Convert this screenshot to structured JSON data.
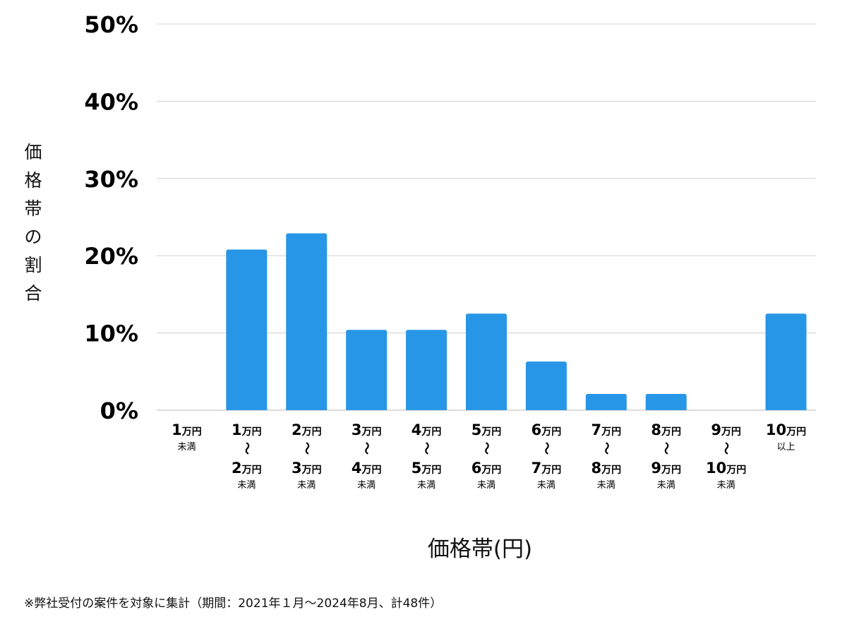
{
  "chart_data": {
    "type": "bar",
    "categories": [
      {
        "lines": [
          [
            "1",
            "万円"
          ],
          [
            "未満"
          ]
        ]
      },
      {
        "lines": [
          [
            "1",
            "万円"
          ],
          [
            "〜"
          ],
          [
            "2",
            "万円"
          ],
          [
            "未満"
          ]
        ]
      },
      {
        "lines": [
          [
            "2",
            "万円"
          ],
          [
            "〜"
          ],
          [
            "3",
            "万円"
          ],
          [
            "未満"
          ]
        ]
      },
      {
        "lines": [
          [
            "3",
            "万円"
          ],
          [
            "〜"
          ],
          [
            "4",
            "万円"
          ],
          [
            "未満"
          ]
        ]
      },
      {
        "lines": [
          [
            "4",
            "万円"
          ],
          [
            "〜"
          ],
          [
            "5",
            "万円"
          ],
          [
            "未満"
          ]
        ]
      },
      {
        "lines": [
          [
            "5",
            "万円"
          ],
          [
            "〜"
          ],
          [
            "6",
            "万円"
          ],
          [
            "未満"
          ]
        ]
      },
      {
        "lines": [
          [
            "6",
            "万円"
          ],
          [
            "〜"
          ],
          [
            "7",
            "万円"
          ],
          [
            "未満"
          ]
        ]
      },
      {
        "lines": [
          [
            "7",
            "万円"
          ],
          [
            "〜"
          ],
          [
            "8",
            "万円"
          ],
          [
            "未満"
          ]
        ]
      },
      {
        "lines": [
          [
            "8",
            "万円"
          ],
          [
            "〜"
          ],
          [
            "9",
            "万円"
          ],
          [
            "未満"
          ]
        ]
      },
      {
        "lines": [
          [
            "9",
            "万円"
          ],
          [
            "〜"
          ],
          [
            "10",
            "万円"
          ],
          [
            "未満"
          ]
        ]
      },
      {
        "lines": [
          [
            "10",
            "万円"
          ],
          [
            "以上"
          ]
        ]
      }
    ],
    "values": [
      0,
      20.8,
      22.9,
      10.4,
      10.4,
      12.5,
      6.3,
      2.1,
      2.1,
      0,
      12.5
    ],
    "ylim": [
      0,
      50
    ],
    "yticks": [
      "0%",
      "10%",
      "20%",
      "30%",
      "40%",
      "50%"
    ],
    "ylabel": "価格帯の割合",
    "xlabel": "価格帯(円)",
    "grid": true,
    "bar_color": "#2896e6",
    "grid_color": "#d0d0d0"
  },
  "footnote": "※弊社受付の案件を対象に集計（期間：2021年１月〜2024年8月、計48件）"
}
